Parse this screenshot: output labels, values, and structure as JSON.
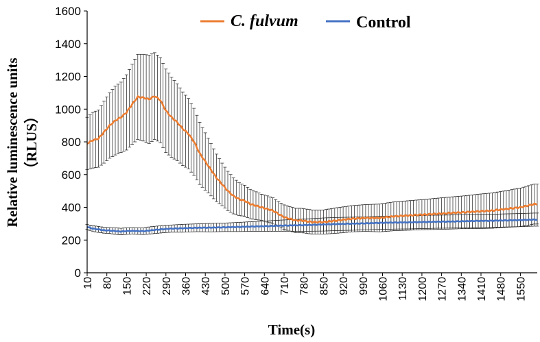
{
  "chart_data": {
    "type": "line",
    "title": "",
    "xlabel": "Time(s)",
    "ylabel_line1": "Relative luminescence units",
    "ylabel_line2": "（RLUS）",
    "ylim": [
      0,
      1600
    ],
    "yticks": [
      "0",
      "200",
      "400",
      "600",
      "800",
      "1000",
      "1200",
      "1400",
      "1600"
    ],
    "xlim": [
      10,
      1610
    ],
    "xticks": [
      "10",
      "80",
      "150",
      "220",
      "290",
      "360",
      "430",
      "500",
      "570",
      "640",
      "710",
      "780",
      "850",
      "920",
      "990",
      "1060",
      "1130",
      "1200",
      "1270",
      "1340",
      "1410",
      "1480",
      "1550"
    ],
    "xtick_values": [
      10,
      80,
      150,
      220,
      290,
      360,
      430,
      500,
      570,
      640,
      710,
      780,
      850,
      920,
      990,
      1060,
      1130,
      1200,
      1270,
      1340,
      1410,
      1480,
      1550
    ],
    "error_bar_step": 10,
    "legend": {
      "placement": "top"
    },
    "series": [
      {
        "name": "C. fulvum",
        "color": "#ED7D31",
        "points": [
          [
            10,
            790,
            160
          ],
          [
            30,
            810,
            170
          ],
          [
            50,
            820,
            175
          ],
          [
            70,
            860,
            190
          ],
          [
            90,
            900,
            200
          ],
          [
            110,
            930,
            210
          ],
          [
            130,
            950,
            215
          ],
          [
            150,
            980,
            230
          ],
          [
            170,
            1030,
            245
          ],
          [
            190,
            1075,
            260
          ],
          [
            210,
            1070,
            265
          ],
          [
            230,
            1060,
            270
          ],
          [
            250,
            1080,
            265
          ],
          [
            270,
            1055,
            260
          ],
          [
            290,
            990,
            255
          ],
          [
            310,
            950,
            245
          ],
          [
            330,
            920,
            235
          ],
          [
            350,
            880,
            225
          ],
          [
            370,
            850,
            215
          ],
          [
            390,
            800,
            205
          ],
          [
            410,
            730,
            190
          ],
          [
            430,
            680,
            175
          ],
          [
            450,
            630,
            160
          ],
          [
            470,
            580,
            145
          ],
          [
            490,
            540,
            130
          ],
          [
            510,
            500,
            120
          ],
          [
            530,
            470,
            110
          ],
          [
            550,
            450,
            100
          ],
          [
            570,
            440,
            95
          ],
          [
            590,
            420,
            90
          ],
          [
            610,
            410,
            85
          ],
          [
            630,
            400,
            80
          ],
          [
            650,
            390,
            80
          ],
          [
            670,
            380,
            78
          ],
          [
            690,
            360,
            76
          ],
          [
            710,
            340,
            75
          ],
          [
            730,
            330,
            75
          ],
          [
            750,
            320,
            74
          ],
          [
            770,
            320,
            74
          ],
          [
            790,
            315,
            74
          ],
          [
            810,
            310,
            74
          ],
          [
            850,
            310,
            74
          ],
          [
            900,
            320,
            78
          ],
          [
            950,
            330,
            80
          ],
          [
            1000,
            335,
            82
          ],
          [
            1050,
            335,
            85
          ],
          [
            1100,
            345,
            88
          ],
          [
            1150,
            350,
            90
          ],
          [
            1200,
            355,
            92
          ],
          [
            1250,
            360,
            95
          ],
          [
            1300,
            365,
            98
          ],
          [
            1350,
            370,
            100
          ],
          [
            1400,
            375,
            105
          ],
          [
            1450,
            380,
            108
          ],
          [
            1500,
            390,
            112
          ],
          [
            1550,
            400,
            118
          ],
          [
            1600,
            420,
            122
          ]
        ]
      },
      {
        "name": "Control",
        "color": "#4472C4",
        "points": [
          [
            10,
            280,
            15
          ],
          [
            30,
            270,
            18
          ],
          [
            50,
            265,
            18
          ],
          [
            70,
            260,
            18
          ],
          [
            90,
            258,
            18
          ],
          [
            110,
            255,
            20
          ],
          [
            130,
            252,
            20
          ],
          [
            150,
            255,
            20
          ],
          [
            170,
            256,
            20
          ],
          [
            190,
            255,
            20
          ],
          [
            210,
            254,
            20
          ],
          [
            230,
            258,
            22
          ],
          [
            250,
            262,
            22
          ],
          [
            270,
            265,
            22
          ],
          [
            290,
            268,
            22
          ],
          [
            310,
            270,
            22
          ],
          [
            350,
            272,
            24
          ],
          [
            400,
            275,
            24
          ],
          [
            450,
            276,
            26
          ],
          [
            500,
            278,
            26
          ],
          [
            550,
            280,
            28
          ],
          [
            600,
            283,
            30
          ],
          [
            650,
            285,
            32
          ],
          [
            700,
            288,
            34
          ],
          [
            750,
            290,
            36
          ],
          [
            800,
            292,
            38
          ],
          [
            850,
            295,
            40
          ],
          [
            900,
            298,
            40
          ],
          [
            950,
            300,
            40
          ],
          [
            1000,
            302,
            40
          ],
          [
            1050,
            305,
            40
          ],
          [
            1100,
            307,
            40
          ],
          [
            1150,
            308,
            40
          ],
          [
            1200,
            310,
            40
          ],
          [
            1250,
            312,
            40
          ],
          [
            1300,
            313,
            40
          ],
          [
            1350,
            315,
            40
          ],
          [
            1400,
            317,
            40
          ],
          [
            1450,
            318,
            40
          ],
          [
            1500,
            320,
            40
          ],
          [
            1550,
            322,
            40
          ],
          [
            1600,
            325,
            40
          ]
        ]
      }
    ]
  }
}
